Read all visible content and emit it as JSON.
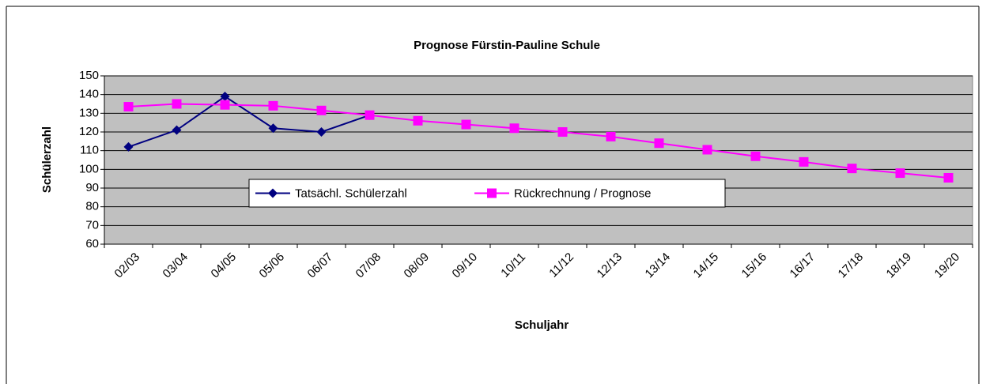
{
  "chart_data": {
    "type": "line",
    "title": "Prognose Fürstin-Pauline Schule",
    "xlabel": "Schuljahr",
    "ylabel": "Schülerzahl",
    "categories": [
      "02/03",
      "03/04",
      "04/05",
      "05/06",
      "06/07",
      "07/08",
      "08/09",
      "09/10",
      "10/11",
      "11/12",
      "12/13",
      "13/14",
      "14/15",
      "15/16",
      "16/17",
      "17/18",
      "18/19",
      "19/20"
    ],
    "series": [
      {
        "name": "Tatsächl. Schülerzahl",
        "color": "#000080",
        "marker": "diamond",
        "values": [
          112,
          121,
          139,
          122,
          120,
          129,
          null,
          null,
          null,
          null,
          null,
          null,
          null,
          null,
          null,
          null,
          null,
          null
        ]
      },
      {
        "name": "Rückrechnung / Prognose",
        "color": "#ff00ff",
        "marker": "square",
        "values": [
          133.5,
          135,
          134.5,
          134,
          131.5,
          129,
          126,
          124,
          122,
          120,
          117.5,
          114,
          110.5,
          107,
          104,
          100.5,
          98,
          95.5
        ]
      }
    ],
    "ylim": [
      60,
      150
    ],
    "yticks": [
      60,
      70,
      80,
      90,
      100,
      110,
      120,
      130,
      140,
      150
    ],
    "grid": true,
    "legend": "center",
    "plot_background": "#c0c0c0"
  }
}
